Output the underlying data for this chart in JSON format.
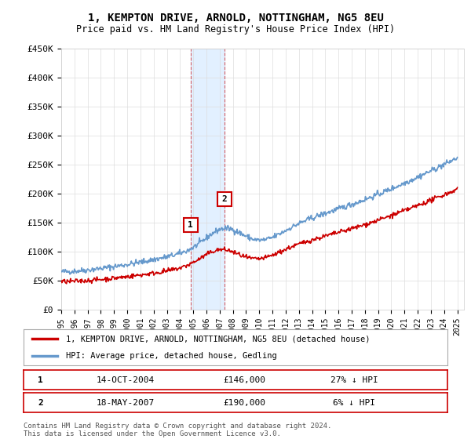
{
  "title": "1, KEMPTON DRIVE, ARNOLD, NOTTINGHAM, NG5 8EU",
  "subtitle": "Price paid vs. HM Land Registry's House Price Index (HPI)",
  "ylim": [
    0,
    450000
  ],
  "yticks": [
    0,
    50000,
    100000,
    150000,
    200000,
    250000,
    300000,
    350000,
    400000,
    450000
  ],
  "ytick_labels": [
    "£0",
    "£50K",
    "£100K",
    "£150K",
    "£200K",
    "£250K",
    "£300K",
    "£350K",
    "£400K",
    "£450K"
  ],
  "x_start_year": 1995,
  "x_end_year": 2025,
  "sale1_year": 2004.79,
  "sale1_price": 146000,
  "sale1_label": "1",
  "sale1_date": "14-OCT-2004",
  "sale1_price_str": "£146,000",
  "sale1_pct": "27% ↓ HPI",
  "sale2_year": 2007.38,
  "sale2_price": 190000,
  "sale2_label": "2",
  "sale2_date": "18-MAY-2007",
  "sale2_price_str": "£190,000",
  "sale2_pct": "6% ↓ HPI",
  "red_line_color": "#cc0000",
  "blue_line_color": "#6699cc",
  "shade_color": "#ddeeff",
  "legend_line1": "1, KEMPTON DRIVE, ARNOLD, NOTTINGHAM, NG5 8EU (detached house)",
  "legend_line2": "HPI: Average price, detached house, Gedling",
  "footnote": "Contains HM Land Registry data © Crown copyright and database right 2024.\nThis data is licensed under the Open Government Licence v3.0.",
  "background_color": "#ffffff",
  "grid_color": "#dddddd"
}
